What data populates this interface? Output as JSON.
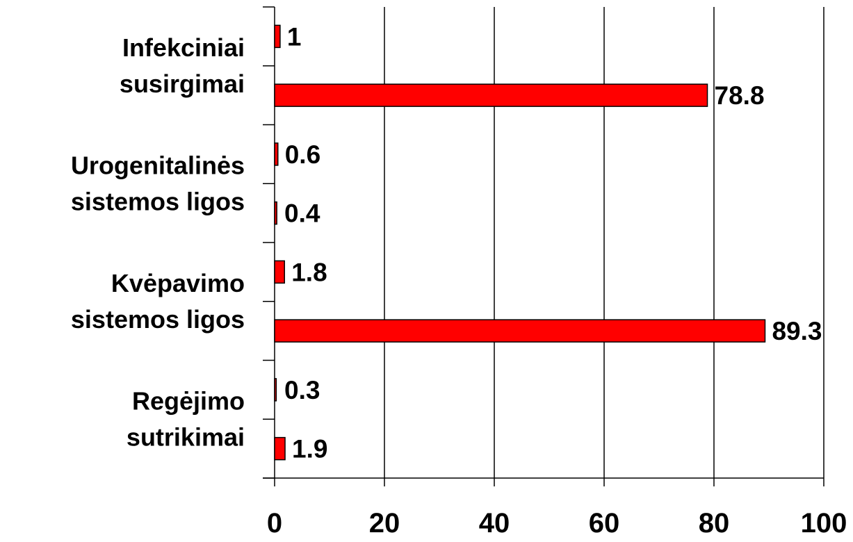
{
  "chart_data": {
    "type": "bar",
    "orientation": "horizontal",
    "categories": [
      [
        "Infekciniai",
        "susirgimai"
      ],
      [
        "Urogenitalinės",
        "sistemos ligos"
      ],
      [
        "Kvėpavimo",
        "sistemos ligos"
      ],
      [
        "Regėjimo",
        "sutrikimai"
      ]
    ],
    "series": [
      {
        "values": [
          1,
          0.6,
          1.8,
          0.3
        ]
      },
      {
        "values": [
          78.8,
          0.4,
          89.3,
          1.9
        ]
      }
    ],
    "xlim": [
      0,
      100
    ],
    "xticks": [
      0,
      20,
      40,
      60,
      80,
      100
    ],
    "xtick_labels": [
      "0",
      "20",
      "40",
      "60",
      "80",
      "100"
    ],
    "grid": true,
    "bar_color": "#ff0000",
    "bar_edge_color": "#000000"
  }
}
